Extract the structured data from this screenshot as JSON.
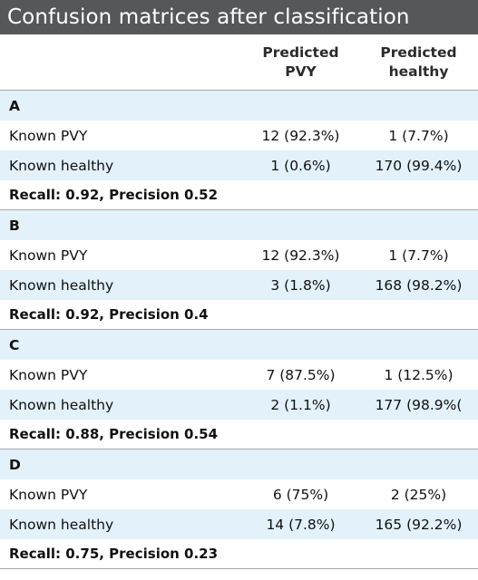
{
  "table": {
    "title": "Confusion matrices after classification",
    "columns": [
      "Predicted\nPVY",
      "Predicted\nhealthy"
    ],
    "column_lines": [
      [
        "Predicted",
        "PVY"
      ],
      [
        "Predicted",
        "healthy"
      ]
    ],
    "sections": [
      {
        "label": "A",
        "rows": [
          {
            "label": "Known PVY",
            "pred_pvy": "12 (92.3%)",
            "pred_healthy": "1 (7.7%)"
          },
          {
            "label": "Known healthy",
            "pred_pvy": "1 (0.6%)",
            "pred_healthy": "170 (99.4%)"
          }
        ],
        "summary": "Recall: 0.92, Precision 0.52"
      },
      {
        "label": "B",
        "rows": [
          {
            "label": "Known PVY",
            "pred_pvy": "12 (92.3%)",
            "pred_healthy": "1 (7.7%)"
          },
          {
            "label": "Known healthy",
            "pred_pvy": "3 (1.8%)",
            "pred_healthy": "168 (98.2%)"
          }
        ],
        "summary": "Recall: 0.92, Precision 0.4"
      },
      {
        "label": "C",
        "rows": [
          {
            "label": "Known PVY",
            "pred_pvy": "7 (87.5%)",
            "pred_healthy": "1 (12.5%)"
          },
          {
            "label": "Known healthy",
            "pred_pvy": "2 (1.1%)",
            "pred_healthy": "177 (98.9%("
          }
        ],
        "summary": "Recall: 0.88, Precision 0.54"
      },
      {
        "label": "D",
        "rows": [
          {
            "label": "Known PVY",
            "pred_pvy": "6 (75%)",
            "pred_healthy": "2 (25%)"
          },
          {
            "label": "Known healthy",
            "pred_pvy": "14 (7.8%)",
            "pred_healthy": "165 (92.2%)"
          }
        ],
        "summary": "Recall: 0.75, Precision 0.23"
      }
    ]
  },
  "colors": {
    "title_bg": "#555759",
    "row_shade": "#e2f1fa",
    "rule": "#a9a9a9"
  }
}
